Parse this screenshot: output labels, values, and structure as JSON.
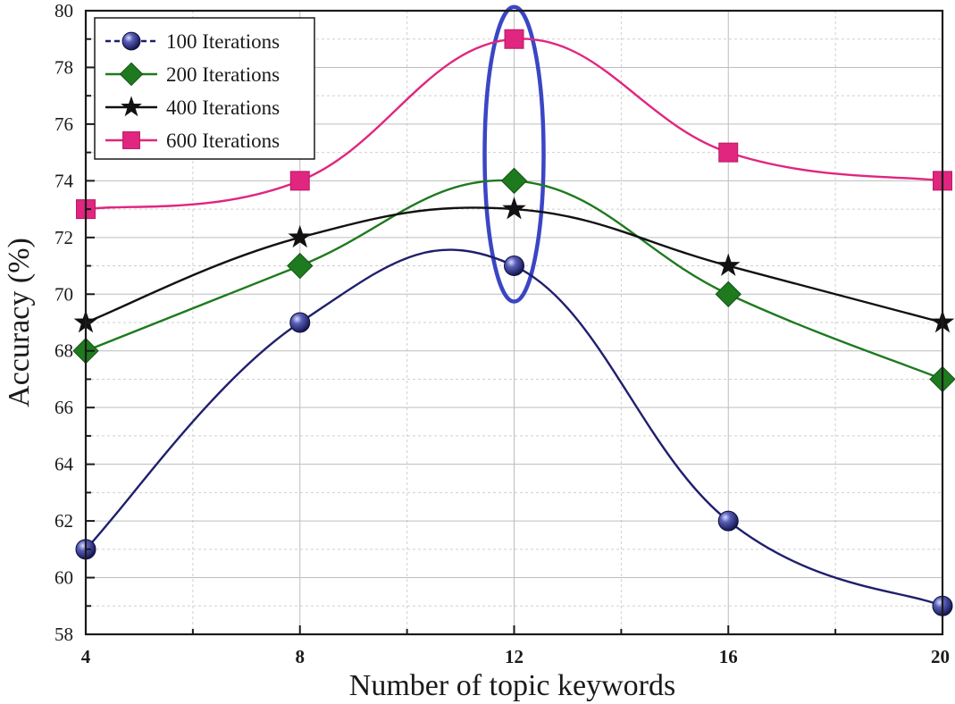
{
  "chart_data": {
    "type": "line",
    "xlabel": "Number of topic keywords",
    "ylabel": "Accuracy (%)",
    "x": [
      4,
      8,
      12,
      16,
      20
    ],
    "xlim": [
      4,
      20
    ],
    "ylim": [
      58,
      80
    ],
    "x_ticks": [
      4,
      8,
      12,
      16,
      20
    ],
    "y_ticks": [
      58,
      60,
      62,
      64,
      66,
      68,
      70,
      72,
      74,
      76,
      78,
      80
    ],
    "grid": true,
    "legend_position": "top-left",
    "highlight": {
      "shape": "ellipse",
      "x": 12,
      "color": "#3b46c4"
    },
    "series": [
      {
        "name": "100 Iterations",
        "values": [
          61,
          69,
          71,
          62,
          59
        ],
        "color": "#1f1f6e",
        "marker": "circle"
      },
      {
        "name": "200 Iterations",
        "values": [
          68,
          71,
          74,
          70,
          67
        ],
        "color": "#1e7a1e",
        "marker": "diamond"
      },
      {
        "name": "400 Iterations",
        "values": [
          69,
          72,
          73,
          71,
          69
        ],
        "color": "#111111",
        "marker": "star"
      },
      {
        "name": "600 Iterations",
        "values": [
          73,
          74,
          79,
          75,
          74
        ],
        "color": "#e0267f",
        "marker": "square"
      }
    ]
  }
}
